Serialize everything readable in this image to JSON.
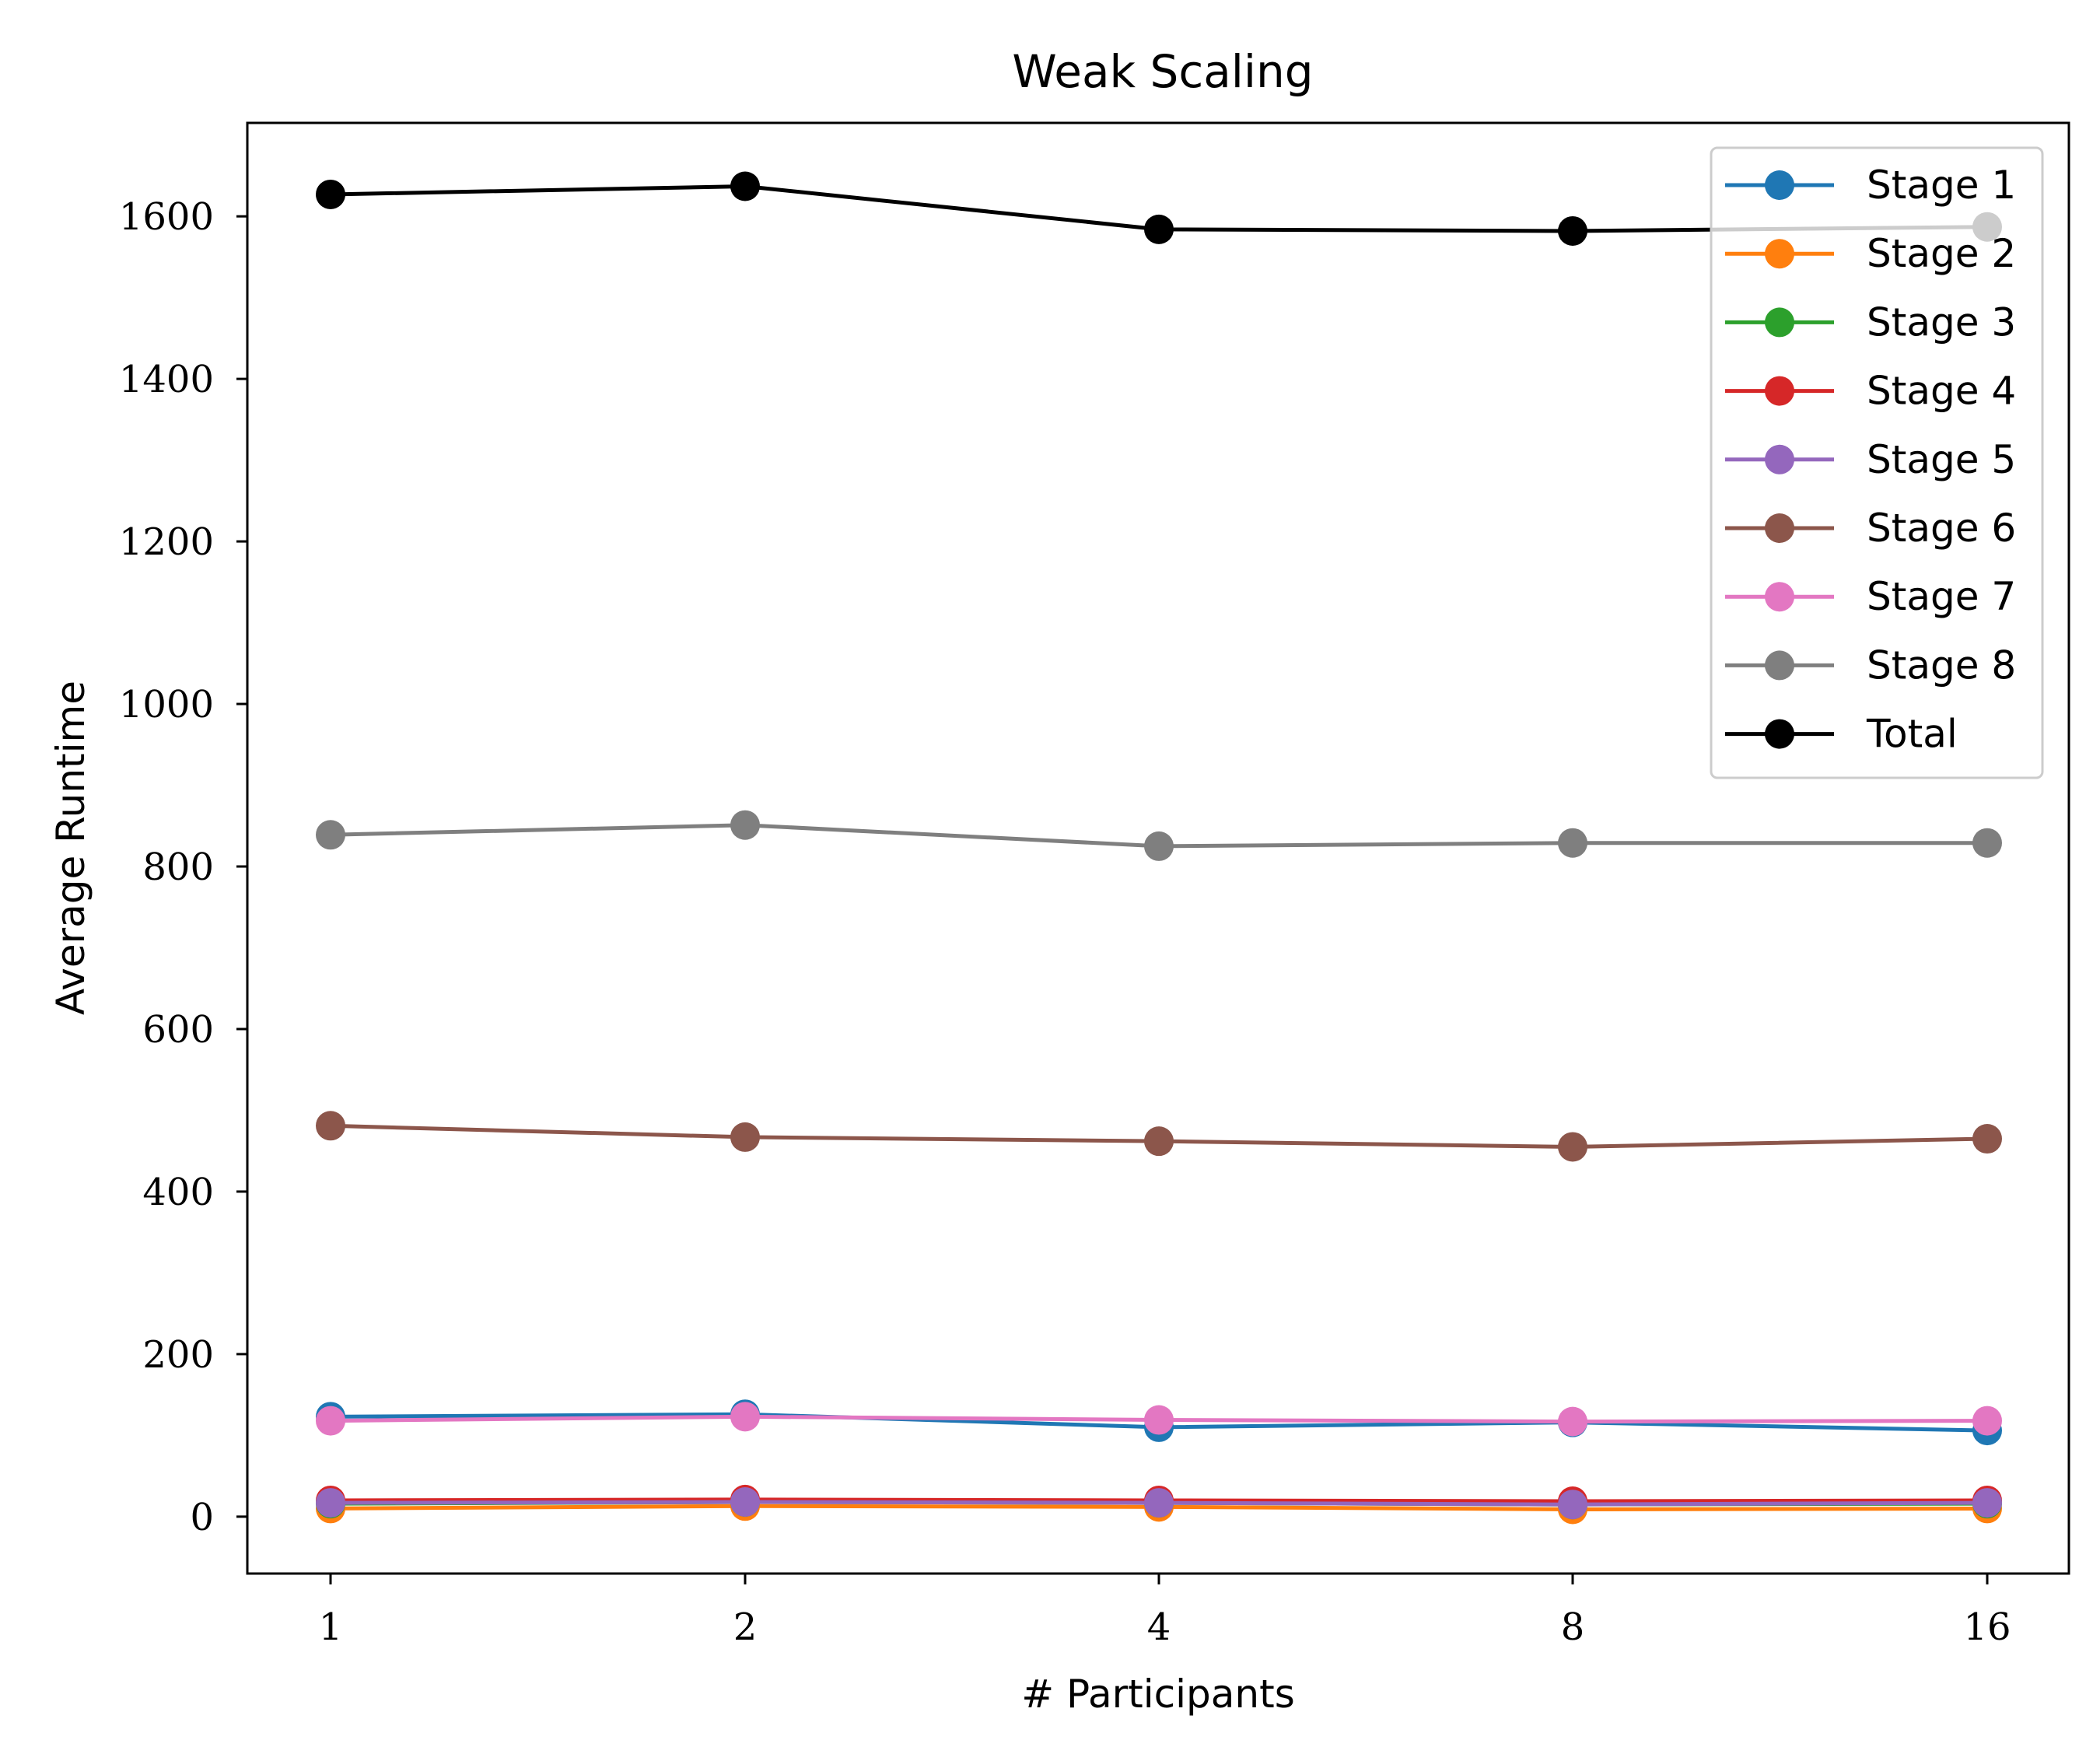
{
  "chart_data": {
    "type": "line",
    "title": "Weak Scaling",
    "xlabel": "# Participants",
    "ylabel": "Average Runtime",
    "categories": [
      "1",
      "2",
      "4",
      "8",
      "16"
    ],
    "ylim": [
      -70,
      1715
    ],
    "yticks": [
      0,
      200,
      400,
      600,
      800,
      1000,
      1200,
      1400,
      1600
    ],
    "ytick_labels": [
      "0",
      "200",
      "400",
      "600",
      "800",
      "1000",
      "1200",
      "1400",
      "1600"
    ],
    "grid": false,
    "legend_position": "top-right",
    "marker": "circle",
    "series": [
      {
        "name": "Stage 1",
        "color": "#1f77b4",
        "values": [
          123,
          126,
          110,
          116,
          106
        ]
      },
      {
        "name": "Stage 2",
        "color": "#ff7f0e",
        "values": [
          10,
          13,
          12,
          9,
          10
        ]
      },
      {
        "name": "Stage 3",
        "color": "#2ca02c",
        "values": [
          16,
          18,
          17,
          15,
          16
        ]
      },
      {
        "name": "Stage 4",
        "color": "#d62728",
        "values": [
          20,
          21,
          20,
          19,
          20
        ]
      },
      {
        "name": "Stage 5",
        "color": "#9467bd",
        "values": [
          17,
          18,
          17,
          15,
          17
        ]
      },
      {
        "name": "Stage 6",
        "color": "#8c564b",
        "values": [
          481,
          467,
          462,
          455,
          465
        ]
      },
      {
        "name": "Stage 7",
        "color": "#e377c2",
        "values": [
          118,
          123,
          119,
          117,
          118
        ]
      },
      {
        "name": "Stage 8",
        "color": "#7f7f7f",
        "values": [
          839,
          851,
          825,
          829,
          829
        ]
      },
      {
        "name": "Total",
        "color": "#000000",
        "values": [
          1627,
          1637,
          1584,
          1582,
          1587
        ]
      }
    ]
  }
}
